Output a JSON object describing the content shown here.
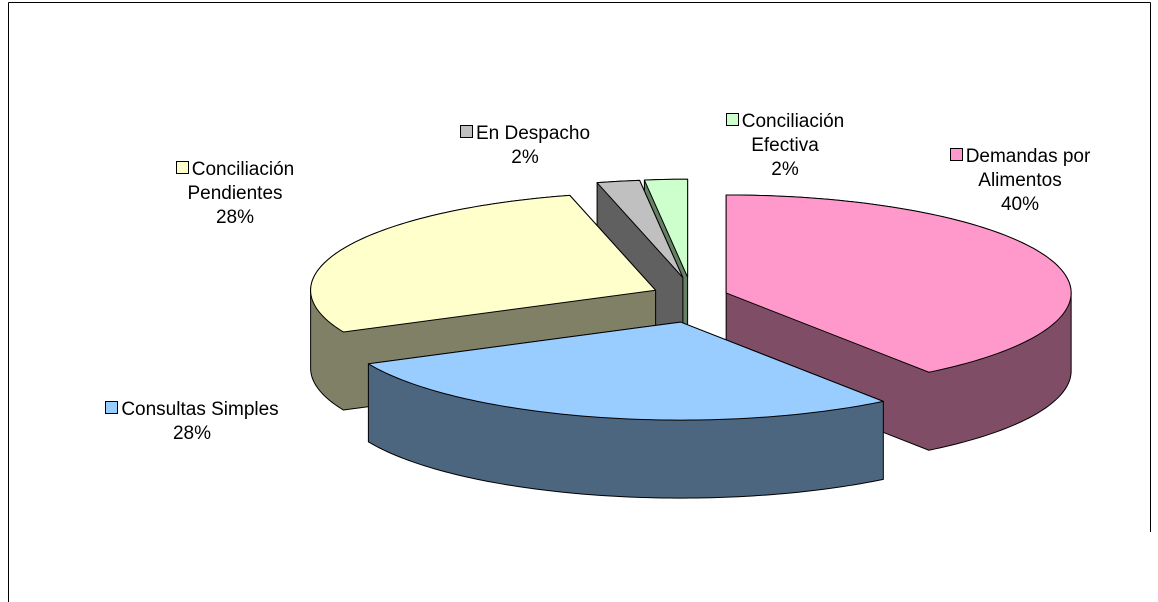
{
  "chart_data": {
    "type": "pie3d",
    "categories": [
      "Demandas por Alimentos",
      "Consultas Simples",
      "Conciliación Pendientes",
      "En Despacho",
      "Conciliación Efectiva"
    ],
    "values": [
      40,
      28,
      28,
      2,
      2
    ],
    "value_labels": [
      "40%",
      "28%",
      "28%",
      "2%",
      "2%"
    ],
    "colors": [
      "#FF99CC",
      "#99CCFF",
      "#FFFFCC",
      "#C0C0C0",
      "#CCFFCC"
    ]
  }
}
